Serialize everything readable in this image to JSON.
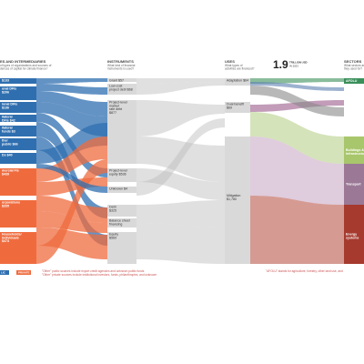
{
  "header": {
    "total": "1.9",
    "total_unit": "TRILLION USD",
    "total_year": "IN 2023"
  },
  "columns": [
    {
      "title": "ES AND INTERMEDIARIES",
      "question": [
        "of types of organizations and sources of",
        "dences of capital for climate finance?"
      ]
    },
    {
      "title": "INSTRUMENTS",
      "question": [
        "What kind of financial",
        "instruments is used?"
      ]
    },
    {
      "title": "USES",
      "question": [
        "What types of",
        "activities are financed?"
      ]
    },
    {
      "title": "SECTORS",
      "question": [
        "What sectors are",
        "they used for?"
      ]
    }
  ],
  "sources": [
    {
      "lines": [
        "$133"
      ]
    },
    {
      "lines": [
        "onal DFIs",
        "$206"
      ]
    },
    {
      "lines": [
        "ional DFIs",
        "$136"
      ]
    },
    {
      "lines": [
        "ilateral",
        "DFIs $42"
      ]
    },
    {
      "lines": [
        "ilateral",
        "funds $3"
      ]
    },
    {
      "lines": [
        "ther",
        "public $66"
      ]
    },
    {
      "lines": [
        "Ds $40"
      ]
    },
    {
      "lines": [
        "mercial FIs",
        "$439"
      ]
    },
    {
      "lines": [
        "orporations",
        "$335"
      ]
    },
    {
      "lines": [
        "Households/",
        "individuals",
        "$473"
      ]
    }
  ],
  "instruments": [
    {
      "lines": [
        "Grant $57"
      ]
    },
    {
      "lines": [
        "Low-cost",
        "project debt $68"
      ]
    },
    {
      "lines": [
        "Project-level",
        "market",
        "rate debt",
        "$877"
      ]
    },
    {
      "lines": [
        "Project-level",
        "equity $536"
      ]
    },
    {
      "lines": [
        "Unknown $4"
      ]
    },
    {
      "lines": [
        "Debt",
        "$325"
      ]
    },
    {
      "lines": [
        "Balance sheet",
        "financing"
      ]
    },
    {
      "lines": [
        "Equity",
        "$569"
      ]
    }
  ],
  "uses": [
    {
      "lines": [
        "Adaptation $64"
      ]
    },
    {
      "lines": [
        "Dual benefit",
        "$69"
      ]
    },
    {
      "lines": [
        "Mitigation",
        "$1,780"
      ]
    }
  ],
  "sectors": [
    {
      "lines": [
        "AFOLU"
      ]
    },
    {
      "lines": [
        "Buildings &",
        "infrastructure"
      ]
    },
    {
      "lines": [
        "Transport"
      ]
    },
    {
      "lines": [
        "Energy",
        "systems"
      ]
    }
  ],
  "legend": [
    "LIC",
    "PRIVATE"
  ],
  "notes": [
    "\"Other\" public sources include export credit agencies and unknown public funds",
    "\"Other\" private sources include institutional investors, funds, philanthropies, and unknown",
    "\"AFOLU\" stands for agriculture, forestry, other land use, and"
  ]
}
